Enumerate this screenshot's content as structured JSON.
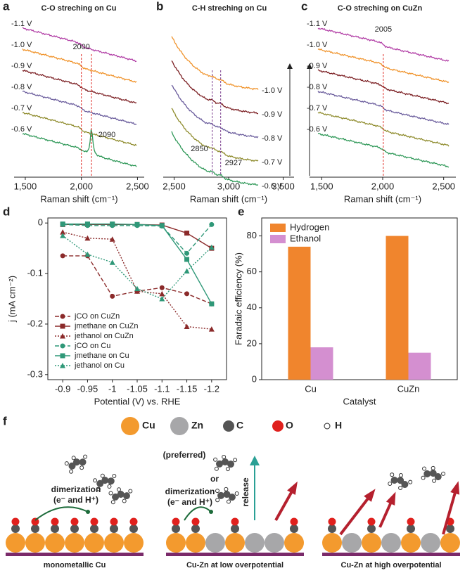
{
  "chart_data": [
    {
      "type": "spectra",
      "panel": "a",
      "title": "C-O streching on Cu",
      "xlabel": "Raman shift (cm⁻¹)",
      "xlim": [
        1400,
        2560
      ],
      "xticks": [
        {
          "value": 1500,
          "label": "1,500"
        },
        {
          "value": 2000,
          "label": "2,000"
        },
        {
          "value": 2500,
          "label": "2,500"
        }
      ],
      "label_side": "left",
      "peaks": [
        2000,
        2090
      ],
      "peak_color": "#e0302a",
      "series": [
        {
          "name": "-1.1 V",
          "color": "#b23fa6"
        },
        {
          "name": "-1.0 V",
          "color": "#f0932b"
        },
        {
          "name": "-0.9 V",
          "color": "#7b1e22"
        },
        {
          "name": "-0.8 V",
          "color": "#6a5c9c"
        },
        {
          "name": "-0.7 V",
          "color": "#8e8b2c"
        },
        {
          "name": "-0.6 V",
          "color": "#2f9858"
        }
      ]
    },
    {
      "type": "spectra",
      "panel": "b",
      "title": "C-H streching on Cu",
      "xlabel": "Raman shift (cm⁻¹)",
      "xlim": [
        2400,
        3600
      ],
      "xticks": [
        {
          "value": 2500,
          "label": "2,500"
        },
        {
          "value": 3000,
          "label": "3,000"
        },
        {
          "value": 3500,
          "label": "3,500"
        }
      ],
      "label_side": "right",
      "peaks": [
        2850,
        2927
      ],
      "peak_color": "#7a3c8e",
      "series": [
        {
          "name": "-1.0 V",
          "color": "#f0932b"
        },
        {
          "name": "-0.9 V",
          "color": "#7b1e22"
        },
        {
          "name": "-0.8 V",
          "color": "#6a5c9c"
        },
        {
          "name": "-0.7 V",
          "color": "#8e8b2c"
        },
        {
          "name": "-0.6 V",
          "color": "#2f9858"
        }
      ]
    },
    {
      "type": "spectra",
      "panel": "c",
      "title": "C-O streching on CuZn",
      "xlabel": "Raman shift (cm⁻¹)",
      "xlim": [
        1400,
        2600
      ],
      "xticks": [
        {
          "value": 1500,
          "label": "1,500"
        },
        {
          "value": 2000,
          "label": "2,000"
        },
        {
          "value": 2500,
          "label": "2,500"
        }
      ],
      "label_side": "left",
      "peaks": [
        2005
      ],
      "peak_color": "#e0302a",
      "series": [
        {
          "name": "-1.1 V",
          "color": "#b23fa6"
        },
        {
          "name": "-1.0 V",
          "color": "#f0932b"
        },
        {
          "name": "-0.9 V",
          "color": "#7b1e22"
        },
        {
          "name": "-0.8 V",
          "color": "#6a5c9c"
        },
        {
          "name": "-0.7 V",
          "color": "#8e8b2c"
        },
        {
          "name": "-0.6 V",
          "color": "#2f9858"
        }
      ]
    },
    {
      "type": "line",
      "panel": "d",
      "xlabel": "Potential (V) vs. RHE",
      "ylabel": "j (mA cm⁻²)",
      "x": [
        -0.9,
        -0.95,
        -1,
        -1.05,
        -1.1,
        -1.15,
        -1.2
      ],
      "xlim": [
        -0.87,
        -1.23
      ],
      "xticks": [
        -0.9,
        -0.95,
        -1,
        -1.05,
        -1.1,
        -1.15,
        -1.2
      ],
      "ylim": [
        -0.31,
        0.01
      ],
      "yticks": [
        0,
        -0.1,
        -0.2,
        -0.3
      ],
      "legend": "lower-left",
      "series": [
        {
          "name": "jCO on CuZn",
          "color": "#8b2a2a",
          "marker": "circle",
          "dash": "dashed",
          "values": [
            -0.065,
            -0.065,
            -0.145,
            -0.135,
            -0.128,
            -0.14,
            -0.16
          ]
        },
        {
          "name": "jmethane on CuZn",
          "color": "#8b2a2a",
          "marker": "square",
          "dash": "solid",
          "values": [
            -0.003,
            -0.003,
            -0.003,
            -0.003,
            -0.004,
            -0.02,
            -0.05
          ]
        },
        {
          "name": "jethanol on CuZn",
          "color": "#8b2a2a",
          "marker": "triangle",
          "dash": "dotted",
          "values": [
            -0.018,
            -0.03,
            -0.032,
            -0.135,
            -0.14,
            -0.205,
            -0.21
          ]
        },
        {
          "name": "jCO on Cu",
          "color": "#2f9878",
          "marker": "circle",
          "dash": "dashed",
          "values": [
            -0.003,
            -0.005,
            -0.005,
            -0.005,
            -0.006,
            -0.06,
            -0.003
          ]
        },
        {
          "name": "jmethane on Cu",
          "color": "#2f9878",
          "marker": "square",
          "dash": "solid",
          "values": [
            -0.002,
            -0.002,
            -0.002,
            -0.003,
            -0.005,
            -0.072,
            -0.16
          ]
        },
        {
          "name": "jethanol on Cu",
          "color": "#2f9878",
          "marker": "triangle",
          "dash": "dotted",
          "values": [
            -0.025,
            -0.062,
            -0.078,
            -0.13,
            -0.15,
            -0.095,
            -0.048
          ]
        }
      ]
    },
    {
      "type": "bar",
      "panel": "e",
      "xlabel": "Catalyst",
      "ylabel": "Faradaic efficiency (%)",
      "categories": [
        "Cu",
        "CuZn"
      ],
      "ylim": [
        0,
        90
      ],
      "yticks": [
        0,
        20,
        40,
        60,
        80
      ],
      "legend": "upper-left",
      "series": [
        {
          "name": "Hydrogen",
          "color": "#f0852d",
          "values": [
            74,
            80
          ]
        },
        {
          "name": "Ethanol",
          "color": "#d48fd0",
          "values": [
            18,
            15
          ]
        }
      ]
    }
  ],
  "diagram": {
    "panel": "f",
    "legend": [
      {
        "label": "Cu",
        "color": "#f39a2e"
      },
      {
        "label": "Zn",
        "color": "#a7a7a9"
      },
      {
        "label": "C",
        "color": "#555555"
      },
      {
        "label": "O",
        "color": "#e0201d"
      },
      {
        "label": "H",
        "color": "#ffffff"
      }
    ],
    "captions": [
      "monometallic Cu",
      "Cu-Zn at low overpotential",
      "Cu-Zn at high overpotential"
    ],
    "notes": {
      "dimerization": "dimerization",
      "electrons": "(e⁻ and H⁺)",
      "preferred": "(preferred)",
      "or": "or",
      "release": "release"
    }
  }
}
